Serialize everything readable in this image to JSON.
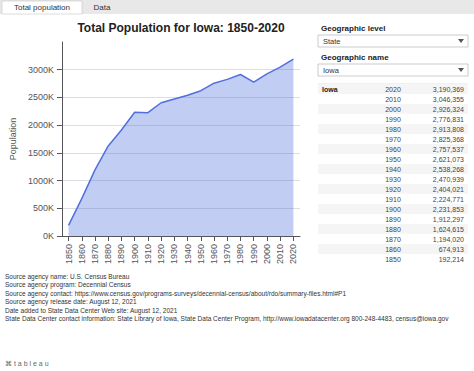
{
  "chart_data": {
    "type": "area",
    "title": "Total Population for Iowa: 1850-2020",
    "ylabel": "Population",
    "x": [
      1850,
      1860,
      1870,
      1880,
      1890,
      1900,
      1910,
      1920,
      1930,
      1940,
      1950,
      1960,
      1970,
      1980,
      1990,
      2000,
      2010,
      2020
    ],
    "values": [
      192214,
      674913,
      1194020,
      1624615,
      1912297,
      2231853,
      2224771,
      2404021,
      2470939,
      2538268,
      2621073,
      2757537,
      2825368,
      2913808,
      2776831,
      2926324,
      3046355,
      3190369
    ],
    "xlim": [
      1845,
      2025
    ],
    "xticks": [
      1850,
      1860,
      1870,
      1880,
      1890,
      1900,
      1910,
      1920,
      1930,
      1940,
      1950,
      1960,
      1970,
      1980,
      1990,
      2000,
      2010,
      2020
    ],
    "ylim": [
      0,
      3500000
    ],
    "yticks": [
      {
        "value": 0,
        "label": "0K"
      },
      {
        "value": 500000,
        "label": "500K"
      },
      {
        "value": 1000000,
        "label": "1000K"
      },
      {
        "value": 1500000,
        "label": "1500K"
      },
      {
        "value": 2000000,
        "label": "2000K"
      },
      {
        "value": 2500000,
        "label": "2500K"
      },
      {
        "value": 3000000,
        "label": "3000K"
      }
    ],
    "grid": true,
    "annotations": [
      [
        "Total population",
        "Data"
      ],
      [
        "Geographic level",
        "State",
        "Geographic name",
        "Iowa"
      ],
      [
        [
          "Iowa",
          "2020",
          "3,190,369"
        ],
        [
          "2010",
          "3,046,355"
        ],
        [
          "2000",
          "2,926,324"
        ],
        [
          "1990",
          "2,776,831"
        ],
        [
          "1980",
          "2,913,808"
        ],
        [
          "1970",
          "2,825,368"
        ],
        [
          "1960",
          "2,757,537"
        ],
        [
          "1950",
          "2,621,073"
        ],
        [
          "1940",
          "2,538,268"
        ],
        [
          "1930",
          "2,470,939"
        ],
        [
          "1920",
          "2,404,021"
        ],
        [
          "1910",
          "2,224,771"
        ],
        [
          "1900",
          "2,231,853"
        ],
        [
          "1890",
          "1,912,297"
        ],
        [
          "1880",
          "1,624,615"
        ],
        [
          "1870",
          "1,194,020"
        ],
        [
          "1860",
          "674,913"
        ],
        [
          "1850",
          "192,214"
        ]
      ],
      [
        [
          "Source agency name:",
          "U.S. Census Bureau"
        ],
        [
          "Source agency program:",
          "Decennial Census"
        ],
        [
          "Source agency contact:",
          "https://www.census.gov/programs-surveys/decennial-census/about/rdo/summary-files.html#P1"
        ],
        [
          "Source agency release date:",
          "August 12, 2021"
        ],
        [
          "Date added to State Data Center Web site:",
          "August 12, 2021"
        ],
        [
          "State Data Center contact information:",
          "State Library of Iowa, State Data Center Program, http://www.iowadatacenter.org 800-248-4483, census@iowa.gov"
        ]
      ],
      [
        "⌘ t a b l e a u"
      ]
    ]
  }
}
